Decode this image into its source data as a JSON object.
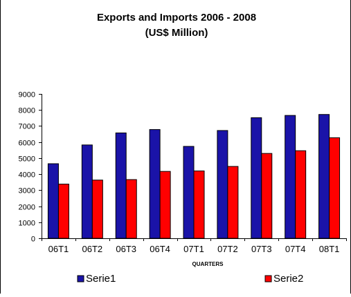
{
  "chart_data": {
    "type": "bar",
    "title": "Exports and Imports 2006 - 2008",
    "subtitle": "(US$ Million)",
    "xlabel": "QUARTERS",
    "ylabel": "",
    "categories": [
      "06T1",
      "06T2",
      "06T3",
      "06T4",
      "07T1",
      "07T2",
      "07T3",
      "07T4",
      "08T1"
    ],
    "series": [
      {
        "name": "Serie1",
        "color": "#1a13a8",
        "values": [
          4650,
          5820,
          6570,
          6780,
          5730,
          6720,
          7520,
          7660,
          7720
        ]
      },
      {
        "name": "Serie2",
        "color": "#ff0000",
        "values": [
          3380,
          3630,
          3660,
          4170,
          4200,
          4480,
          5290,
          5460,
          6270
        ]
      }
    ],
    "ylim": [
      0,
      9000
    ],
    "yticks": [
      0,
      1000,
      2000,
      3000,
      4000,
      5000,
      6000,
      7000,
      8000,
      9000
    ],
    "grid": false,
    "legend_position": "bottom"
  }
}
